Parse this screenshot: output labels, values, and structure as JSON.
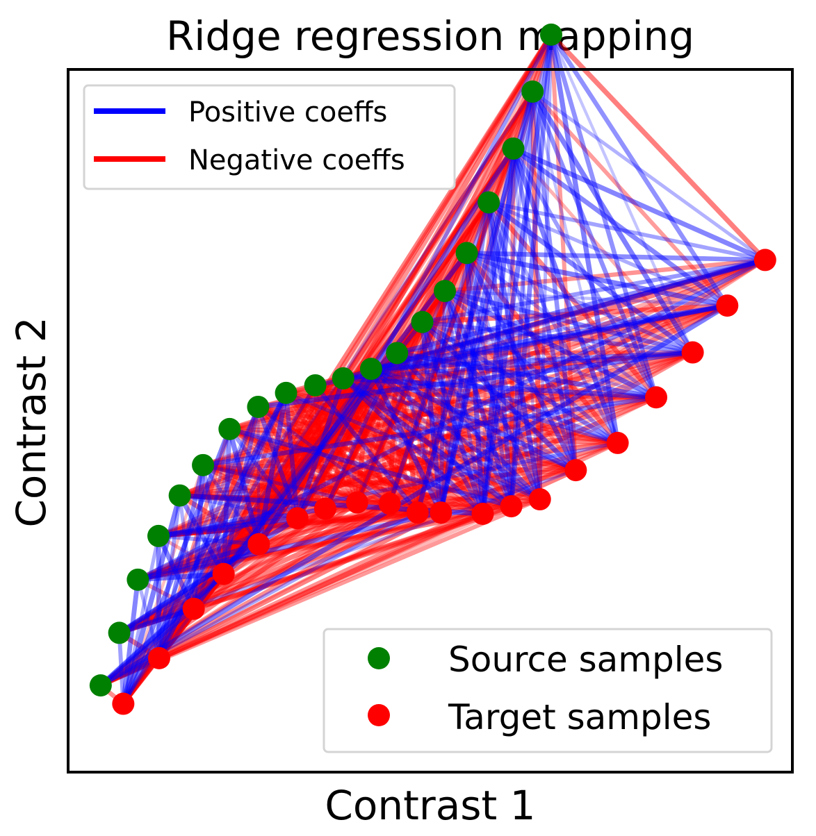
{
  "chart_data": {
    "type": "scatter",
    "title": "Ridge regression mapping",
    "xlabel": "Contrast 1",
    "ylabel": "Contrast 2",
    "grid": false,
    "ticks_visible": false,
    "xlim": [
      -0.4,
      10.5
    ],
    "ylim": [
      -0.6,
      10.5
    ],
    "line_legend": {
      "placement": "top-left",
      "entries": [
        {
          "label": "Positive coeffs",
          "color": "#0000ff"
        },
        {
          "label": "Negative coeffs",
          "color": "#ff0000"
        }
      ]
    },
    "marker_legend": {
      "placement": "bottom-right",
      "entries": [
        {
          "label": "Source samples",
          "color": "#008000"
        },
        {
          "label": "Target samples",
          "color": "#ff0000"
        }
      ]
    },
    "series": [
      {
        "name": "Source samples",
        "color": "#008000",
        "points": [
          [
            0.09,
            0.77
          ],
          [
            0.37,
            1.6
          ],
          [
            0.65,
            2.44
          ],
          [
            0.96,
            3.13
          ],
          [
            1.28,
            3.77
          ],
          [
            1.63,
            4.25
          ],
          [
            2.03,
            4.82
          ],
          [
            2.46,
            5.17
          ],
          [
            2.88,
            5.39
          ],
          [
            3.32,
            5.51
          ],
          [
            3.74,
            5.62
          ],
          [
            4.16,
            5.77
          ],
          [
            4.55,
            6.02
          ],
          [
            4.93,
            6.51
          ],
          [
            5.27,
            7.0
          ],
          [
            5.6,
            7.6
          ],
          [
            5.93,
            8.4
          ],
          [
            6.3,
            9.25
          ],
          [
            6.59,
            10.15
          ],
          [
            6.87,
            11.05
          ]
        ]
      },
      {
        "name": "Target samples",
        "color": "#ff0000",
        "points": [
          [
            0.43,
            0.48
          ],
          [
            0.97,
            1.2
          ],
          [
            1.49,
            1.98
          ],
          [
            1.94,
            2.53
          ],
          [
            2.47,
            3.0
          ],
          [
            3.05,
            3.41
          ],
          [
            3.47,
            3.56
          ],
          [
            3.95,
            3.66
          ],
          [
            4.44,
            3.64
          ],
          [
            4.86,
            3.5
          ],
          [
            5.21,
            3.5
          ],
          [
            5.84,
            3.48
          ],
          [
            6.27,
            3.6
          ],
          [
            6.7,
            3.71
          ],
          [
            7.24,
            4.17
          ],
          [
            7.87,
            4.6
          ],
          [
            8.45,
            5.32
          ],
          [
            9.0,
            6.03
          ],
          [
            9.52,
            6.77
          ],
          [
            10.09,
            7.49
          ]
        ]
      }
    ],
    "colors": {
      "positive_coeffs": "#0000ff",
      "negative_coeffs": "#ff0000",
      "source": "#008000",
      "target": "#ff0000"
    }
  }
}
